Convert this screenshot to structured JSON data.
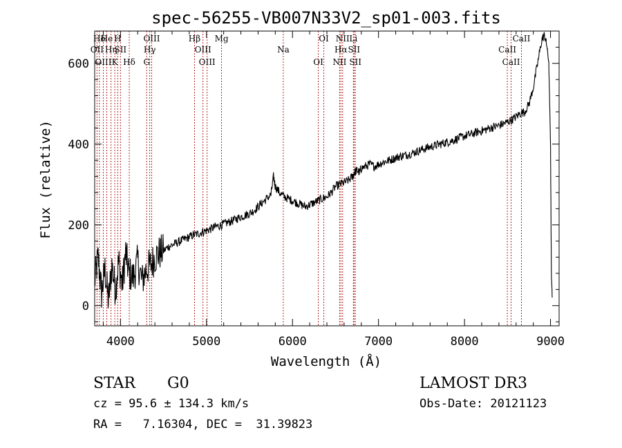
{
  "chart_data": {
    "type": "line",
    "title": "spec-56255-VB007N33V2_sp01-003.fits",
    "xlabel": "Wavelength (Å)",
    "ylabel": "Flux (relative)",
    "xlim": [
      3700,
      9100
    ],
    "ylim": [
      -50,
      680
    ],
    "x_ticks": [
      4000,
      5000,
      6000,
      7000,
      8000,
      9000
    ],
    "y_ticks": [
      0,
      200,
      400,
      600
    ],
    "series": [
      {
        "name": "flux",
        "x": [
          3700,
          3740,
          3780,
          3820,
          3860,
          3900,
          3940,
          3980,
          4020,
          4060,
          4100,
          4150,
          4200,
          4250,
          4300,
          4350,
          4400,
          4450,
          4500,
          4550,
          4600,
          4650,
          4700,
          4750,
          4800,
          4850,
          4900,
          4950,
          5000,
          5050,
          5100,
          5150,
          5200,
          5250,
          5300,
          5350,
          5400,
          5450,
          5500,
          5550,
          5600,
          5650,
          5700,
          5750,
          5780,
          5800,
          5850,
          5900,
          5950,
          6000,
          6050,
          6100,
          6150,
          6200,
          6250,
          6300,
          6350,
          6400,
          6450,
          6500,
          6550,
          6600,
          6650,
          6700,
          6720,
          6750,
          6780,
          6800,
          6850,
          6900,
          6950,
          7000,
          7050,
          7100,
          7150,
          7200,
          7250,
          7300,
          7350,
          7400,
          7450,
          7500,
          7550,
          7600,
          7650,
          7700,
          7750,
          7800,
          7850,
          7900,
          7950,
          8000,
          8050,
          8100,
          8150,
          8200,
          8250,
          8300,
          8350,
          8400,
          8450,
          8500,
          8550,
          8600,
          8650,
          8700,
          8750,
          8800,
          8850,
          8900,
          8930,
          8960,
          8980,
          9000,
          9010,
          9020
        ],
        "y": [
          60,
          120,
          30,
          90,
          10,
          100,
          40,
          110,
          50,
          130,
          80,
          70,
          110,
          60,
          90,
          100,
          120,
          130,
          135,
          145,
          150,
          155,
          160,
          165,
          170,
          175,
          178,
          182,
          186,
          190,
          195,
          198,
          202,
          206,
          210,
          215,
          220,
          224,
          228,
          235,
          245,
          255,
          265,
          275,
          320,
          295,
          280,
          270,
          265,
          260,
          255,
          250,
          245,
          250,
          255,
          260,
          265,
          270,
          280,
          295,
          300,
          305,
          310,
          320,
          330,
          335,
          330,
          340,
          345,
          350,
          345,
          350,
          355,
          358,
          362,
          366,
          370,
          372,
          375,
          378,
          382,
          386,
          390,
          393,
          396,
          399,
          402,
          405,
          408,
          412,
          416,
          420,
          423,
          426,
          430,
          433,
          436,
          440,
          443,
          446,
          450,
          455,
          460,
          468,
          476,
          480,
          500,
          540,
          600,
          660,
          670,
          640,
          600,
          400,
          80,
          20
        ]
      }
    ],
    "lines": [
      {
        "label": "Hδ",
        "x": 3755
      },
      {
        "label": "OII",
        "x": 3727
      },
      {
        "label": "OIII",
        "x": 3800
      },
      {
        "label": "He",
        "x": 3840
      },
      {
        "label": "Hη",
        "x": 3890
      },
      {
        "label": "K",
        "x": 3934
      },
      {
        "label": "H",
        "x": 3968
      },
      {
        "label": "SII",
        "x": 4000
      },
      {
        "label": "Hδ",
        "x": 4102
      },
      {
        "label": "OIII",
        "x": 4363
      },
      {
        "label": "Hγ",
        "x": 4340
      },
      {
        "label": "G",
        "x": 4305
      },
      {
        "label": "Hβ",
        "x": 4861
      },
      {
        "label": "OIII",
        "x": 4959
      },
      {
        "label": "OIII",
        "x": 5007
      },
      {
        "label": "Mg",
        "x": 5175
      },
      {
        "label": "Na",
        "x": 5893
      },
      {
        "label": "OI",
        "x": 6300
      },
      {
        "label": "OI",
        "x": 6364
      },
      {
        "label": "Hα",
        "x": 6563
      },
      {
        "label": "NII",
        "x": 6548
      },
      {
        "label": "NII",
        "x": 6583
      },
      {
        "label": "SII",
        "x": 6716
      },
      {
        "label": "SII",
        "x": 6731
      },
      {
        "label": "Li",
        "x": 6708
      },
      {
        "label": "CaII",
        "x": 8498
      },
      {
        "label": "CaII",
        "x": 8542
      },
      {
        "label": "CaII",
        "x": 8662
      }
    ]
  },
  "info": {
    "class_label": "STAR",
    "subclass_label": "G0",
    "survey": "LAMOST DR3",
    "cz_line": "cz = 95.6 ± 134.3 km/s",
    "obs_date_line": "Obs-Date: 20121123",
    "radec_line": "RA =   7.16304, DEC =  31.39823"
  }
}
